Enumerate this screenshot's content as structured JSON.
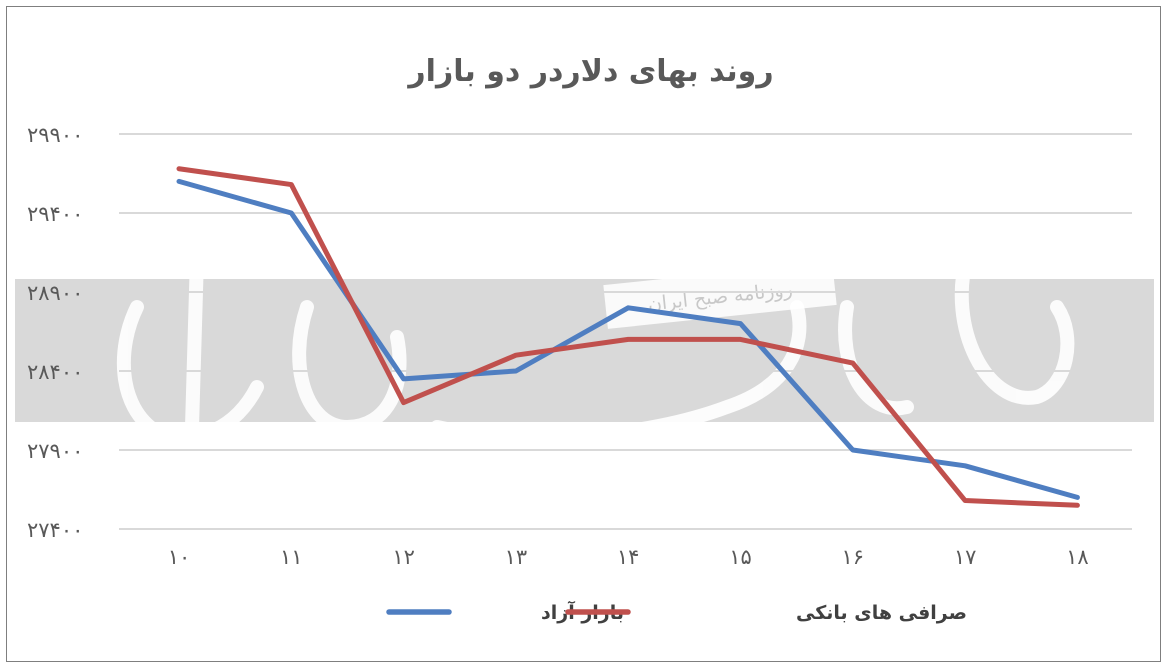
{
  "chart_data": {
    "type": "line",
    "title": "روند بهای دلاردر دو بازار",
    "xlabel": "",
    "ylabel": "",
    "categories": [
      "۱۰",
      "۱۱",
      "۱۲",
      "۱۳",
      "۱۴",
      "۱۵",
      "۱۶",
      "۱۷",
      "۱۸"
    ],
    "x_values": [
      10,
      11,
      12,
      13,
      14,
      15,
      16,
      17,
      18
    ],
    "y_ticks": [
      27400,
      27900,
      28400,
      28900,
      29400,
      29900
    ],
    "y_tick_labels": [
      "۲۷۴۰۰",
      "۲۷۹۰۰",
      "۲۸۴۰۰",
      "۲۸۹۰۰",
      "۲۹۴۰۰",
      "۲۹۹۰۰"
    ],
    "ylim": [
      27400,
      29900
    ],
    "grid": true,
    "legend_position": "bottom",
    "series": [
      {
        "name": "بازار آزاد",
        "color": "#4f7ec1",
        "values": [
          29600,
          29400,
          28350,
          28400,
          28800,
          28700,
          27900,
          27800,
          27600
        ]
      },
      {
        "name": "صرافی های بانکی",
        "color": "#c0504d",
        "values": [
          29680,
          29580,
          28200,
          28500,
          28600,
          28600,
          28450,
          27580,
          27550
        ]
      }
    ]
  },
  "watermark": {
    "logo_text": "دنیای اقتصاد",
    "caption": "روزنامه صبح ایران",
    "band_color": "#d9d9d9"
  }
}
